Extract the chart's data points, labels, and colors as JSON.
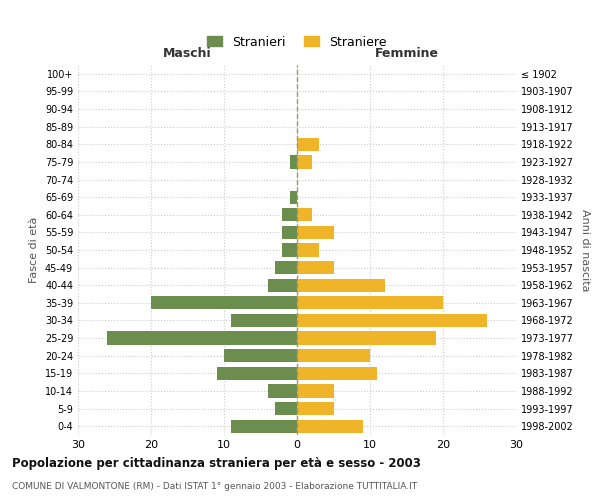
{
  "age_groups": [
    "0-4",
    "5-9",
    "10-14",
    "15-19",
    "20-24",
    "25-29",
    "30-34",
    "35-39",
    "40-44",
    "45-49",
    "50-54",
    "55-59",
    "60-64",
    "65-69",
    "70-74",
    "75-79",
    "80-84",
    "85-89",
    "90-94",
    "95-99",
    "100+"
  ],
  "birth_years": [
    "1998-2002",
    "1993-1997",
    "1988-1992",
    "1983-1987",
    "1978-1982",
    "1973-1977",
    "1968-1972",
    "1963-1967",
    "1958-1962",
    "1953-1957",
    "1948-1952",
    "1943-1947",
    "1938-1942",
    "1933-1937",
    "1928-1932",
    "1923-1927",
    "1918-1922",
    "1913-1917",
    "1908-1912",
    "1903-1907",
    "≤ 1902"
  ],
  "maschi": [
    9,
    3,
    4,
    11,
    10,
    26,
    9,
    20,
    4,
    3,
    2,
    2,
    2,
    1,
    0,
    1,
    0,
    0,
    0,
    0,
    0
  ],
  "femmine": [
    9,
    5,
    5,
    11,
    10,
    19,
    26,
    20,
    12,
    5,
    3,
    5,
    2,
    0,
    0,
    2,
    3,
    0,
    0,
    0,
    0
  ],
  "color_maschi": "#6b8e4e",
  "color_femmine": "#f0b429",
  "title": "Popolazione per cittadinanza straniera per età e sesso - 2003",
  "subtitle": "COMUNE DI VALMONTONE (RM) - Dati ISTAT 1° gennaio 2003 - Elaborazione TUTTITALIA.IT",
  "legend_maschi": "Stranieri",
  "legend_femmine": "Straniere",
  "xlabel_left": "Maschi",
  "xlabel_right": "Femmine",
  "ylabel_left": "Fasce di età",
  "ylabel_right": "Anni di nascita",
  "xlim": 30,
  "background_color": "#ffffff",
  "grid_color": "#cccccc"
}
